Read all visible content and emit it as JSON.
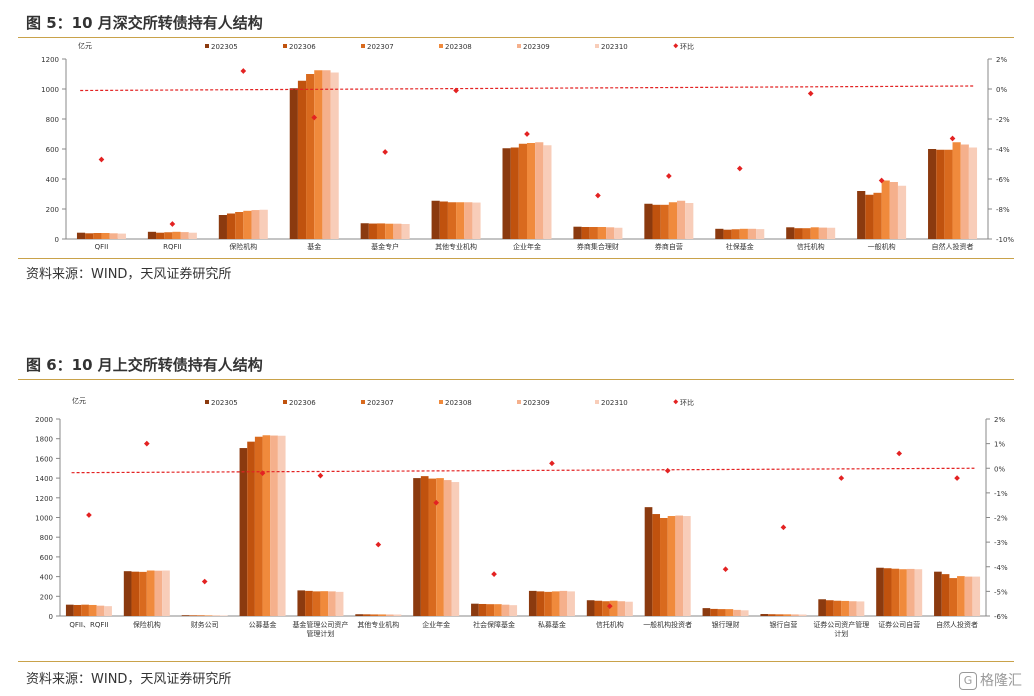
{
  "figures": [
    {
      "title": "图 5：10 月深交所转债持有人结构",
      "source": "资料来源：WIND，天风证券研究所"
    },
    {
      "title": "图 6：10 月上交所转债持有人结构",
      "source": "资料来源：WIND，天风证券研究所"
    }
  ],
  "watermark": {
    "text": "格隆汇",
    "logo": "G"
  },
  "chart_data": [
    {
      "type": "bar",
      "ylabel": "亿元",
      "ylim": [
        0,
        1200
      ],
      "yticks": [
        0,
        200,
        400,
        600,
        800,
        1000,
        1200
      ],
      "y2lim": [
        -10,
        2
      ],
      "y2ticks": [
        "2%",
        "0%",
        "-2%",
        "-4%",
        "-6%",
        "-8%",
        "-10%"
      ],
      "y2tick_values": [
        2,
        0,
        -2,
        -4,
        -6,
        -8,
        -10
      ],
      "legend_position": "top",
      "categories": [
        "QFII",
        "RQFII",
        "保险机构",
        "基金",
        "基金专户",
        "其他专业机构",
        "企业年金",
        "券商集合理财",
        "券商自营",
        "社保基金",
        "信托机构",
        "一般机构",
        "自然人投资者"
      ],
      "series": [
        {
          "name": "202305",
          "color": "#8B3A0F",
          "values": [
            42,
            48,
            160,
            1005,
            105,
            255,
            605,
            82,
            235,
            68,
            78,
            320,
            600
          ]
        },
        {
          "name": "202306",
          "color": "#C0520E",
          "values": [
            38,
            42,
            170,
            1055,
            103,
            250,
            610,
            80,
            228,
            62,
            72,
            295,
            595
          ]
        },
        {
          "name": "202307",
          "color": "#D96A1E",
          "values": [
            40,
            45,
            180,
            1100,
            104,
            245,
            635,
            80,
            228,
            65,
            72,
            308,
            595
          ]
        },
        {
          "name": "202308",
          "color": "#F08A3C",
          "values": [
            40,
            48,
            188,
            1125,
            102,
            245,
            640,
            80,
            245,
            68,
            78,
            390,
            645
          ]
        },
        {
          "name": "202309",
          "color": "#F5B08C",
          "values": [
            38,
            46,
            193,
            1125,
            102,
            245,
            645,
            78,
            255,
            68,
            76,
            380,
            630
          ]
        },
        {
          "name": "202310",
          "color": "#F8CDB9",
          "values": [
            36,
            42,
            195,
            1110,
            100,
            243,
            625,
            75,
            240,
            66,
            75,
            355,
            610
          ]
        }
      ],
      "line": {
        "name": "环比",
        "color": "#E32222",
        "values": [
          -4.7,
          -9.0,
          1.2,
          -1.9,
          -4.2,
          -0.1,
          -3.0,
          -7.1,
          -5.8,
          -5.3,
          -0.3,
          -6.1,
          -3.3
        ]
      },
      "trend": {
        "color": "#E32222",
        "values": [
          -0.1,
          0.2
        ]
      }
    },
    {
      "type": "bar",
      "ylabel": "亿元",
      "ylim": [
        0,
        2000
      ],
      "yticks": [
        0,
        200,
        400,
        600,
        800,
        1000,
        1200,
        1400,
        1600,
        1800,
        2000
      ],
      "y2lim": [
        -6,
        2
      ],
      "y2ticks": [
        "2%",
        "1%",
        "0%",
        "-1%",
        "-2%",
        "-3%",
        "-4%",
        "-5%",
        "-6%"
      ],
      "y2tick_values": [
        2,
        1,
        0,
        -1,
        -2,
        -3,
        -4,
        -5,
        -6
      ],
      "legend_position": "top",
      "categories": [
        "QFII、RQFII",
        "保险机构",
        "财务公司",
        "公募基金",
        "基金管理公司资产管理计划",
        "其他专业机构",
        "企业年金",
        "社会保障基金",
        "私募基金",
        "信托机构",
        "一般机构投资者",
        "银行理财",
        "银行自营",
        "证券公司资产管理计划",
        "证券公司自营",
        "自然人投资者"
      ],
      "category_lines": [
        [
          "QFII、RQFII"
        ],
        [
          "保险机构"
        ],
        [
          "财务公司"
        ],
        [
          "公募基金"
        ],
        [
          "基金管理公司资产",
          "管理计划"
        ],
        [
          "其他专业机构"
        ],
        [
          "企业年金"
        ],
        [
          "社会保障基金"
        ],
        [
          "私募基金"
        ],
        [
          "信托机构"
        ],
        [
          "一般机构投资者"
        ],
        [
          "银行理财"
        ],
        [
          "银行自营"
        ],
        [
          "证券公司资产管理",
          "计划"
        ],
        [
          "证券公司自营"
        ],
        [
          "自然人投资者"
        ]
      ],
      "series": [
        {
          "name": "202305",
          "color": "#8B3A0F",
          "values": [
            115,
            455,
            8,
            1705,
            260,
            18,
            1400,
            125,
            255,
            160,
            1105,
            80,
            20,
            170,
            490,
            450
          ]
        },
        {
          "name": "202306",
          "color": "#C0520E",
          "values": [
            112,
            450,
            7,
            1770,
            255,
            17,
            1420,
            122,
            250,
            155,
            1035,
            72,
            18,
            160,
            485,
            425
          ]
        },
        {
          "name": "202307",
          "color": "#D96A1E",
          "values": [
            115,
            448,
            7,
            1820,
            250,
            16,
            1395,
            120,
            245,
            150,
            995,
            70,
            17,
            155,
            480,
            385
          ]
        },
        {
          "name": "202308",
          "color": "#F08A3C",
          "values": [
            112,
            462,
            6,
            1835,
            252,
            16,
            1400,
            120,
            250,
            155,
            1015,
            70,
            17,
            153,
            475,
            405
          ]
        },
        {
          "name": "202309",
          "color": "#F5B08C",
          "values": [
            105,
            460,
            5,
            1832,
            250,
            15,
            1380,
            115,
            255,
            150,
            1020,
            62,
            16,
            150,
            478,
            400
          ]
        },
        {
          "name": "202310",
          "color": "#F8CDB9",
          "values": [
            100,
            462,
            5,
            1830,
            245,
            15,
            1360,
            110,
            250,
            145,
            1015,
            58,
            15,
            148,
            475,
            400
          ]
        }
      ],
      "line": {
        "name": "环比",
        "color": "#E32222",
        "values": [
          -1.9,
          1.0,
          -4.6,
          -0.2,
          -0.3,
          -3.1,
          -1.4,
          -4.3,
          0.2,
          -5.6,
          -0.1,
          -4.1,
          -2.4,
          -0.4,
          0.6,
          -0.4
        ]
      },
      "trend": {
        "color": "#E32222",
        "values": [
          -0.18,
          0.0
        ]
      }
    }
  ]
}
